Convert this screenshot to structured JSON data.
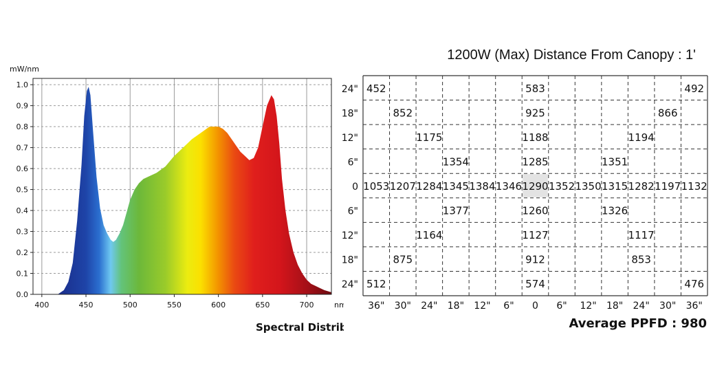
{
  "chart_data": [
    {
      "type": "area",
      "title": "Spectral Distribution",
      "ylabel": "mW/nm",
      "xlabel": "nm",
      "xlim": [
        390,
        728
      ],
      "ylim": [
        0.0,
        1.03
      ],
      "grid": true,
      "x_ticks": [
        400,
        450,
        500,
        550,
        600,
        650,
        700
      ],
      "y_ticks": [
        "0.0",
        "0.1",
        "0.2",
        "0.3",
        "0.4",
        "0.5",
        "0.6",
        "0.7",
        "0.8",
        "0.9",
        "1.0"
      ],
      "series": [
        {
          "x": [
            418,
            425,
            430,
            435,
            440,
            445,
            448,
            451,
            453,
            455,
            458,
            462,
            466,
            470,
            474,
            478,
            481,
            484,
            488,
            492,
            496,
            500,
            505,
            510,
            515,
            520,
            530,
            540,
            550,
            560,
            570,
            580,
            590,
            595,
            600,
            605,
            610,
            615,
            620,
            625,
            630,
            635,
            640,
            645,
            650,
            655,
            660,
            663,
            666,
            669,
            672,
            676,
            680,
            685,
            690,
            695,
            700,
            705,
            710,
            715,
            720,
            728
          ],
          "y": [
            0.0,
            0.02,
            0.06,
            0.15,
            0.35,
            0.62,
            0.85,
            0.97,
            0.99,
            0.95,
            0.78,
            0.56,
            0.41,
            0.33,
            0.29,
            0.26,
            0.25,
            0.26,
            0.29,
            0.33,
            0.39,
            0.45,
            0.5,
            0.53,
            0.55,
            0.56,
            0.58,
            0.61,
            0.66,
            0.7,
            0.74,
            0.77,
            0.8,
            0.8,
            0.8,
            0.79,
            0.77,
            0.74,
            0.71,
            0.68,
            0.66,
            0.64,
            0.65,
            0.7,
            0.8,
            0.9,
            0.95,
            0.93,
            0.85,
            0.72,
            0.55,
            0.4,
            0.29,
            0.2,
            0.14,
            0.1,
            0.07,
            0.05,
            0.04,
            0.03,
            0.02,
            0.01
          ]
        }
      ]
    },
    {
      "type": "table",
      "title": "1200W (Max) Distance From Canopy : 1'",
      "x_labels": [
        "36\"",
        "30\"",
        "24\"",
        "18\"",
        "12\"",
        "6\"",
        "0",
        "6\"",
        "12\"",
        "18\"",
        "24\"",
        "30\"",
        "36\""
      ],
      "y_labels": [
        "24\"",
        "18\"",
        "12\"",
        "6\"",
        "0",
        "6\"",
        "12\"",
        "18\"",
        "24\""
      ],
      "highlight": {
        "row": 4,
        "col": 6
      },
      "values": [
        [
          452,
          null,
          null,
          null,
          null,
          null,
          583,
          null,
          null,
          null,
          null,
          null,
          492
        ],
        [
          null,
          852,
          null,
          null,
          null,
          null,
          925,
          null,
          null,
          null,
          null,
          866,
          null
        ],
        [
          null,
          null,
          1175,
          null,
          null,
          null,
          1188,
          null,
          null,
          null,
          1194,
          null,
          null
        ],
        [
          null,
          null,
          null,
          1354,
          null,
          null,
          1285,
          null,
          null,
          1351,
          null,
          null,
          null
        ],
        [
          1053,
          1207,
          1284,
          1345,
          1384,
          1346,
          1290,
          1352,
          1350,
          1315,
          1282,
          1197,
          1132
        ],
        [
          null,
          null,
          null,
          1377,
          null,
          null,
          1260,
          null,
          null,
          1326,
          null,
          null,
          null
        ],
        [
          null,
          null,
          1164,
          null,
          null,
          null,
          1127,
          null,
          null,
          null,
          1117,
          null,
          null
        ],
        [
          null,
          875,
          null,
          null,
          null,
          null,
          912,
          null,
          null,
          null,
          853,
          null,
          null
        ],
        [
          512,
          null,
          null,
          null,
          null,
          null,
          574,
          null,
          null,
          null,
          null,
          null,
          476
        ]
      ],
      "footer": "Average PPFD : 980"
    }
  ]
}
